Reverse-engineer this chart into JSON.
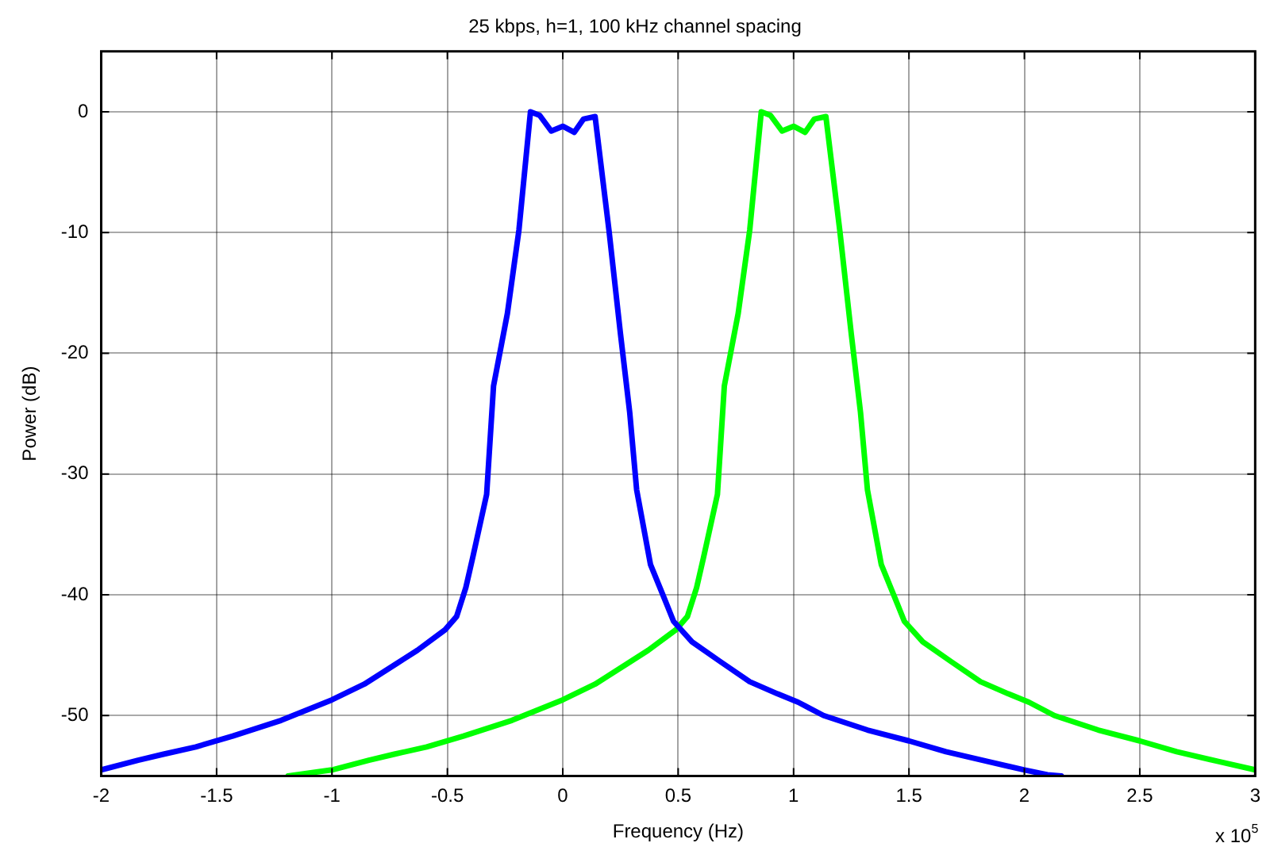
{
  "chart_data": {
    "type": "line",
    "title": "25 kbps, h=1, 100 kHz channel spacing",
    "xlabel": "Frequency (Hz)",
    "ylabel": "Power (dB)",
    "annotations": [
      "x 10$^{5}$"
    ],
    "series": [
      {
        "color": "#0000ff",
        "x": [
          -2.0,
          -1.84,
          -1.73,
          -1.59,
          -1.43,
          -1.22,
          -1.0,
          -0.86,
          -0.72,
          -0.63,
          -0.51,
          -0.46,
          -0.42,
          -0.39,
          -0.33,
          -0.3,
          -0.24,
          -0.19,
          -0.14,
          -0.1,
          -0.05,
          0.0,
          0.05,
          0.09,
          0.14,
          0.2,
          0.25,
          0.29,
          0.32,
          0.38,
          0.44,
          0.48,
          0.56,
          0.68,
          0.81,
          0.93,
          1.02,
          1.13,
          1.32,
          1.5,
          1.66,
          1.84,
          2.0,
          2.1,
          2.16
        ],
        "values": [
          -54.5,
          -53.7,
          -53.2,
          -52.6,
          -51.7,
          -50.4,
          -48.7,
          -47.4,
          -45.7,
          -44.6,
          -42.9,
          -41.8,
          -39.4,
          -36.9,
          -31.7,
          -22.7,
          -16.7,
          -9.8,
          0,
          -0.3,
          -1.6,
          -1.2,
          -1.7,
          -0.6,
          -0.4,
          -9.8,
          -18.4,
          -24.9,
          -31.3,
          -37.5,
          -40.3,
          -42.2,
          -43.9,
          -45.5,
          -47.2,
          -48.2,
          -48.9,
          -50.0,
          -51.2,
          -52.1,
          -53.0,
          -53.8,
          -54.5,
          -54.9,
          -55.0
        ]
      },
      {
        "color": "#00ff00",
        "x": [
          -1.19,
          -1.0,
          -0.84,
          -0.73,
          -0.59,
          -0.43,
          -0.22,
          0.0,
          0.14,
          0.28,
          0.37,
          0.49,
          0.54,
          0.58,
          0.61,
          0.67,
          0.7,
          0.76,
          0.81,
          0.86,
          0.9,
          0.95,
          1.0,
          1.05,
          1.09,
          1.14,
          1.2,
          1.25,
          1.29,
          1.32,
          1.38,
          1.44,
          1.48,
          1.56,
          1.68,
          1.81,
          1.93,
          2.02,
          2.13,
          2.32,
          2.5,
          2.66,
          2.84,
          3.0
        ],
        "values": [
          -55.0,
          -54.5,
          -53.7,
          -53.2,
          -52.6,
          -51.7,
          -50.4,
          -48.7,
          -47.4,
          -45.7,
          -44.6,
          -42.9,
          -41.8,
          -39.4,
          -36.9,
          -31.7,
          -22.7,
          -16.7,
          -9.8,
          0,
          -0.3,
          -1.6,
          -1.2,
          -1.7,
          -0.6,
          -0.4,
          -9.8,
          -18.4,
          -24.9,
          -31.3,
          -37.5,
          -40.3,
          -42.2,
          -43.9,
          -45.5,
          -47.2,
          -48.2,
          -48.9,
          -50.0,
          -51.2,
          -52.1,
          -53.0,
          -53.8,
          -54.5
        ]
      }
    ],
    "xlim": [
      -2,
      3
    ],
    "xticks": [
      -2,
      -1.5,
      -1,
      -0.5,
      0,
      0.5,
      1,
      1.5,
      2,
      2.5,
      3
    ],
    "ylim": [
      -55,
      5
    ],
    "yticks": [
      -50,
      -40,
      -30,
      -20,
      -10,
      0
    ],
    "grid": true,
    "legend": false,
    "marker": "none",
    "line_style": "solid"
  }
}
